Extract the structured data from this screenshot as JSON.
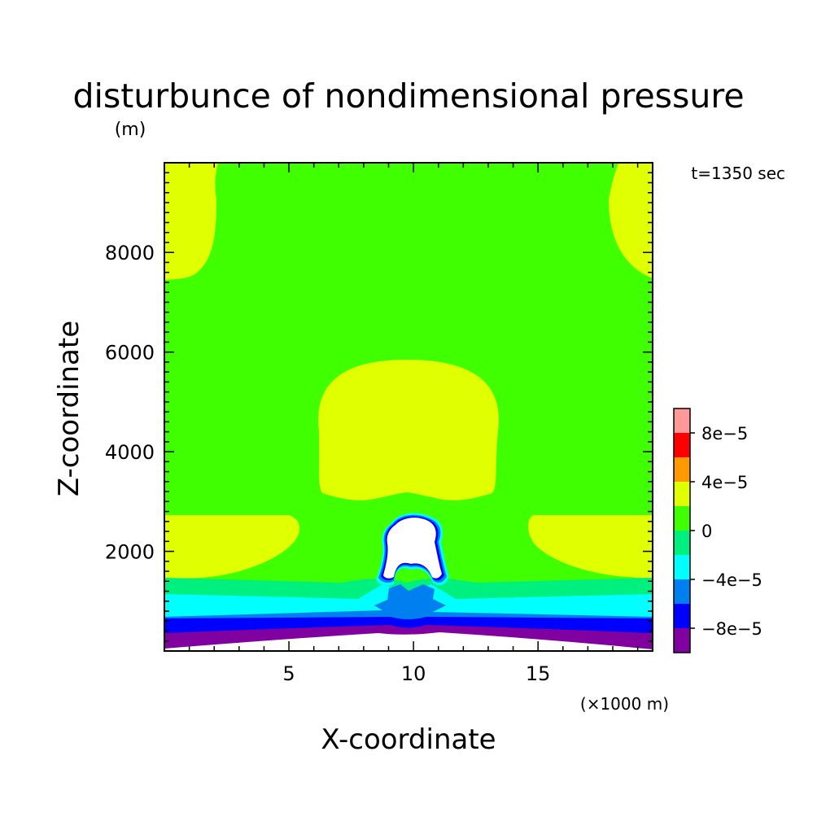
{
  "chart_data": {
    "type": "heatmap",
    "title": "disturbunce of nondimensional pressure",
    "units": "(m)",
    "time_label": "t=1350 sec",
    "xlabel": "X-coordinate",
    "ylabel": "Z-coordinate",
    "x_units": "(×1000 m)",
    "xlim": [
      0,
      19.6
    ],
    "ylim": [
      0,
      9800
    ],
    "x_ticks": [
      5,
      10,
      15
    ],
    "x_tick_labels": [
      "5",
      "10",
      "15"
    ],
    "y_ticks": [
      2000,
      4000,
      6000,
      8000
    ],
    "y_tick_labels": [
      "2000",
      "4000",
      "6000",
      "8000"
    ],
    "x_minor_step": 1,
    "y_minor_step": 200,
    "colorbar": {
      "levels": [
        -0.0001,
        -8e-05,
        -6e-05,
        -4e-05,
        -2e-05,
        0,
        2e-05,
        4e-05,
        6e-05,
        8e-05,
        0.0001
      ],
      "colors": [
        "#8000a0",
        "#0000ff",
        "#0080f0",
        "#00ffff",
        "#00f080",
        "#40ff00",
        "#e0ff00",
        "#ff9900",
        "#ff0000",
        "#ff9999"
      ],
      "labels": [
        "-8e-5",
        "-4e-5",
        "0",
        "4e-5",
        "8e-5"
      ]
    },
    "colors": {
      "background_field": "#40ff00",
      "positive_region": "#e0ff00",
      "weak_negative": "#00f080",
      "moderate_negative": "#00ffff",
      "negative": "#0080f0",
      "strong_negative": "#0000ff",
      "very_strong_negative": "#8000a0",
      "missing": "#ffffff"
    }
  }
}
